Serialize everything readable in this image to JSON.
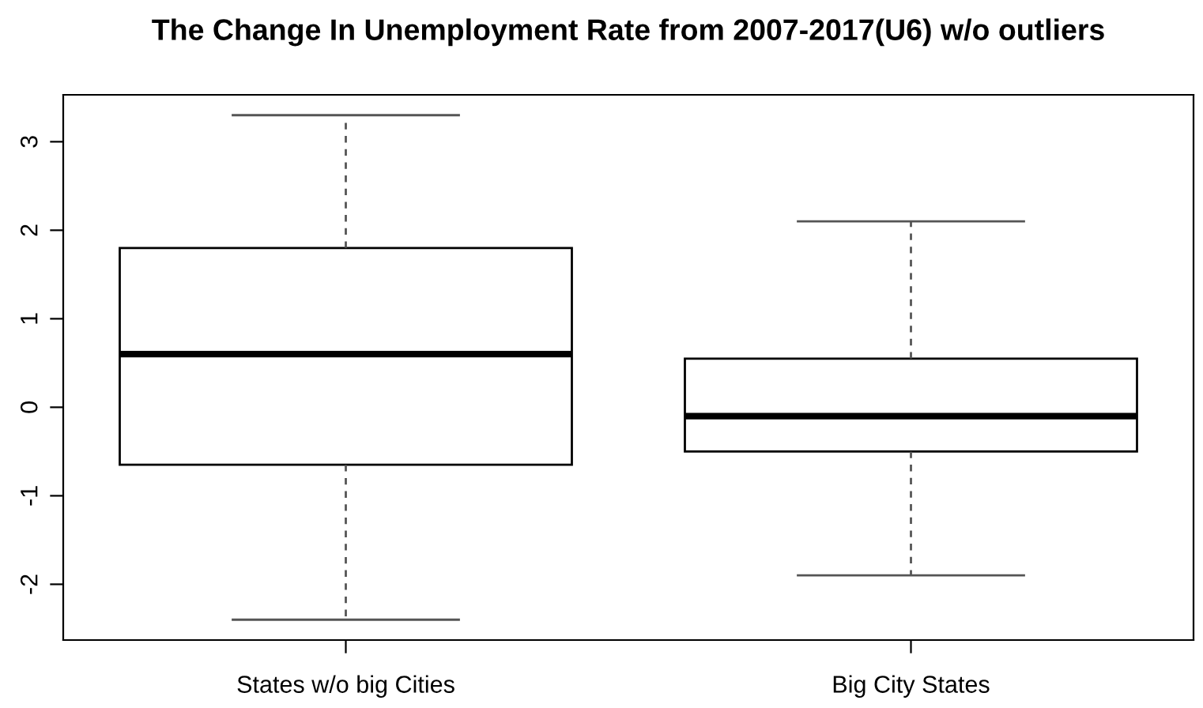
{
  "chart_data": {
    "type": "box",
    "title": "The Change In Unemployment Rate from 2007-2017(U6) w/o outliers",
    "categories": [
      "States w/o big Cities",
      "Big City States"
    ],
    "boxes": [
      {
        "low": -2.4,
        "q1": -0.65,
        "median": 0.6,
        "q3": 1.8,
        "high": 3.3
      },
      {
        "low": -1.9,
        "q1": -0.5,
        "median": -0.1,
        "q3": 0.55,
        "high": 2.1
      }
    ],
    "ylim": [
      -2.63,
      3.53
    ],
    "yticks": [
      -2,
      -1,
      0,
      1,
      2,
      3
    ]
  }
}
